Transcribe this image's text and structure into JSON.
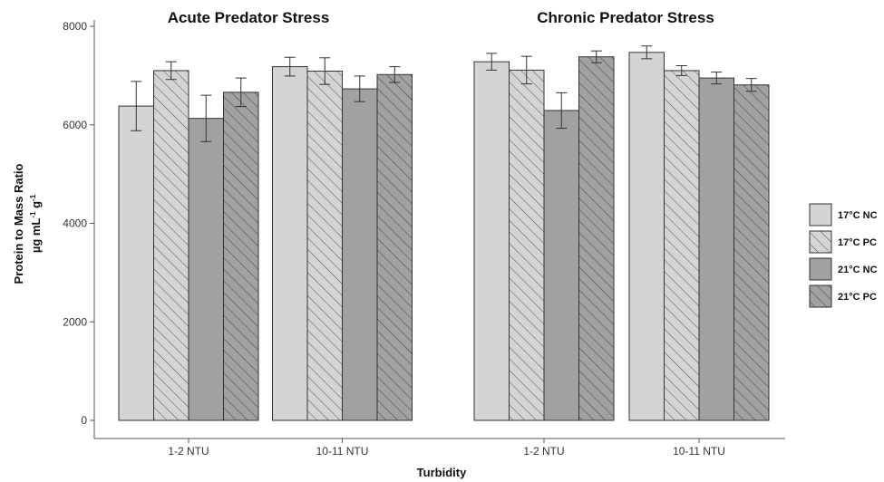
{
  "chart_data": {
    "type": "bar",
    "panels": [
      {
        "title": "Acute Predator Stress",
        "categories": [
          "1-2 NTU",
          "10-11 NTU"
        ],
        "series": [
          {
            "name": "17°C NC",
            "values": [
              6380,
              7180
            ],
            "errors": [
              500,
              190
            ]
          },
          {
            "name": "17°C PC",
            "values": [
              7100,
              7090
            ],
            "errors": [
              180,
              270
            ]
          },
          {
            "name": "21°C NC",
            "values": [
              6130,
              6730
            ],
            "errors": [
              470,
              260
            ]
          },
          {
            "name": "21°C PC",
            "values": [
              6660,
              7020
            ],
            "errors": [
              290,
              160
            ]
          }
        ]
      },
      {
        "title": "Chronic Predator Stress",
        "categories": [
          "1-2 NTU",
          "10-11 NTU"
        ],
        "series": [
          {
            "name": "17°C NC",
            "values": [
              7280,
              7470
            ],
            "errors": [
              170,
              130
            ]
          },
          {
            "name": "17°C PC",
            "values": [
              7110,
              7100
            ],
            "errors": [
              280,
              100
            ]
          },
          {
            "name": "21°C NC",
            "values": [
              6290,
              6950
            ],
            "errors": [
              360,
              120
            ]
          },
          {
            "name": "21°C PC",
            "values": [
              7380,
              6810
            ],
            "errors": [
              120,
              130
            ]
          }
        ]
      }
    ],
    "xlabel": "Turbidity",
    "ylabel_line1": "Protein to Mass Ratio",
    "ylabel_line2_parts": [
      "µg mL",
      "-1",
      " g",
      "-1"
    ],
    "ylim": [
      0,
      8000
    ],
    "yticks": [
      0,
      2000,
      4000,
      6000,
      8000
    ],
    "grid": false,
    "legend_position": "right",
    "colors": {
      "17°C NC": "#d3d4d6",
      "17°C PC": "#d3d4d6",
      "21°C NC": "#a0a1a3",
      "21°C PC": "#a0a1a3"
    },
    "hatched": {
      "17°C NC": false,
      "17°C PC": true,
      "21°C NC": false,
      "21°C PC": true
    }
  }
}
